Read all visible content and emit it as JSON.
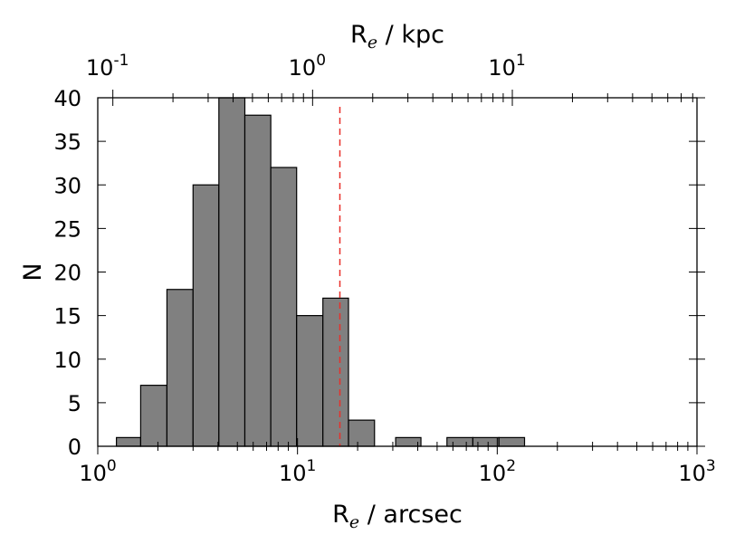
{
  "chart_data": {
    "type": "bar",
    "x_scale": "log",
    "xlim": [
      1,
      1000
    ],
    "ylim": [
      0,
      40
    ],
    "bins": [
      {
        "x_start": 1.24,
        "x_end": 1.64,
        "count": 1
      },
      {
        "x_start": 1.64,
        "x_end": 2.22,
        "count": 7
      },
      {
        "x_start": 2.22,
        "x_end": 3.0,
        "count": 18
      },
      {
        "x_start": 3.0,
        "x_end": 4.04,
        "count": 30
      },
      {
        "x_start": 4.04,
        "x_end": 5.45,
        "count": 40
      },
      {
        "x_start": 5.45,
        "x_end": 7.35,
        "count": 38
      },
      {
        "x_start": 7.35,
        "x_end": 9.9,
        "count": 32
      },
      {
        "x_start": 9.9,
        "x_end": 13.4,
        "count": 15
      },
      {
        "x_start": 13.4,
        "x_end": 18.0,
        "count": 17
      },
      {
        "x_start": 18.0,
        "x_end": 24.3,
        "count": 3
      },
      {
        "x_start": 31.0,
        "x_end": 41.5,
        "count": 1
      },
      {
        "x_start": 56.0,
        "x_end": 75.5,
        "count": 1
      },
      {
        "x_start": 75.5,
        "x_end": 102.0,
        "count": 1
      },
      {
        "x_start": 102.0,
        "x_end": 137.0,
        "count": 1
      }
    ],
    "reference_line": {
      "x": 16.3,
      "color": "#e8302a",
      "style": "dashed"
    },
    "bar_color": "#808080",
    "bottom_axis": {
      "label_main": "R",
      "label_sub": "e",
      "label_rest": " / arcsec",
      "tick_values": [
        1,
        10,
        100,
        1000
      ],
      "tick_labels": [
        {
          "base": "10",
          "exp": "0"
        },
        {
          "base": "10",
          "exp": "1"
        },
        {
          "base": "10",
          "exp": "2"
        },
        {
          "base": "10",
          "exp": "3"
        }
      ]
    },
    "top_axis": {
      "label_main": "R",
      "label_sub": "e",
      "label_rest": " / kpc",
      "tick_values_in_bottom_units": [
        1.19,
        11.9,
        119
      ],
      "tick_labels": [
        {
          "base": "10",
          "exp": "-1"
        },
        {
          "base": "10",
          "exp": "0"
        },
        {
          "base": "10",
          "exp": "1"
        }
      ]
    },
    "y_axis": {
      "label": "N",
      "tick_values": [
        0,
        5,
        10,
        15,
        20,
        25,
        30,
        35,
        40
      ],
      "tick_labels": [
        "0",
        "5",
        "10",
        "15",
        "20",
        "25",
        "30",
        "35",
        "40"
      ]
    },
    "grid": false
  }
}
